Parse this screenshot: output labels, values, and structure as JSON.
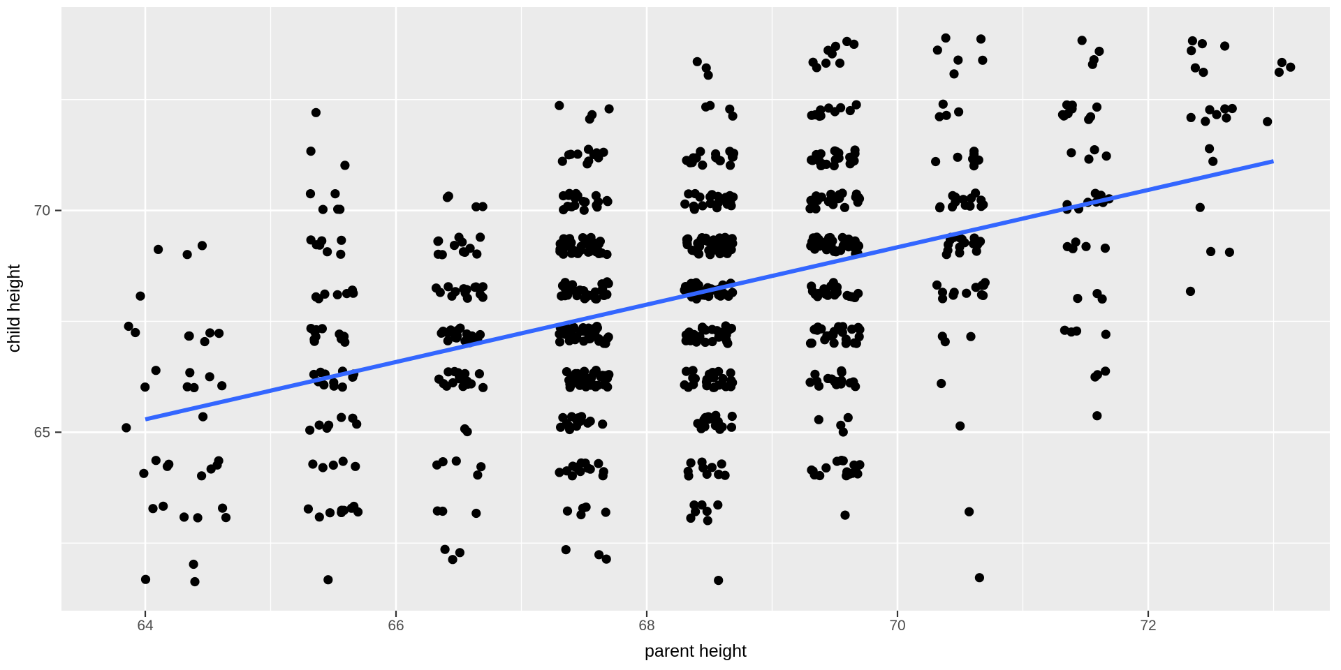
{
  "figure": {
    "background_color": "#FFFFFF",
    "kind": "ggplot-style jittered scatter plot with linear regression line"
  },
  "chart_data": {
    "type": "scatter",
    "title": "",
    "xlabel": "parent height",
    "ylabel": "child height",
    "x_ticks": [
      64,
      66,
      68,
      70,
      72
    ],
    "y_ticks": [
      65,
      70
    ],
    "x_minor_gridlines": [
      65,
      67,
      69,
      71,
      73
    ],
    "y_minor_gridlines": [
      62.5,
      67.5,
      72.5
    ],
    "xlim": [
      63.33,
      73.45
    ],
    "ylim": [
      60.98,
      74.59
    ],
    "grid": "on",
    "legend": "none",
    "panel_color": "#EBEBEB",
    "grid_color": "#FFFFFF",
    "point_color": "#000000",
    "tick_label_color": "#4D4D4D",
    "tick_mark_color": "#333333",
    "jitter": {
      "width": 0.2,
      "height": 0.2
    },
    "regression_line": {
      "color": "#3366FF",
      "x": [
        64,
        73
      ],
      "y": [
        65.29,
        71.11
      ]
    },
    "frequency_table": {
      "note": "Galton parent/child height data; counts of points per (parent height column, child height row) as read from the plotted clusters",
      "parent_values": [
        64,
        64.5,
        65.5,
        66.5,
        67.5,
        68.5,
        69.5,
        70.5,
        71.5,
        72.5,
        73
      ],
      "child_values": [
        61.7,
        62.2,
        63.2,
        64.2,
        65.2,
        66.2,
        67.2,
        68.2,
        69.2,
        70.2,
        71.2,
        72.2,
        73.2,
        73.7
      ],
      "counts": [
        [
          1,
          0,
          2,
          4,
          1,
          2,
          2,
          1,
          1,
          0,
          0,
          0,
          0,
          0
        ],
        [
          1,
          1,
          4,
          4,
          1,
          5,
          5,
          0,
          2,
          0,
          0,
          0,
          0,
          0
        ],
        [
          1,
          0,
          9,
          5,
          7,
          11,
          11,
          7,
          7,
          5,
          2,
          1,
          0,
          0
        ],
        [
          0,
          3,
          3,
          5,
          2,
          17,
          17,
          14,
          13,
          4,
          0,
          0,
          0,
          0
        ],
        [
          0,
          3,
          5,
          14,
          15,
          36,
          38,
          28,
          38,
          19,
          11,
          4,
          0,
          0
        ],
        [
          1,
          0,
          7,
          11,
          16,
          25,
          31,
          34,
          48,
          21,
          18,
          4,
          3,
          0
        ],
        [
          0,
          0,
          1,
          16,
          4,
          17,
          27,
          20,
          33,
          25,
          20,
          11,
          4,
          5
        ],
        [
          1,
          0,
          1,
          0,
          1,
          1,
          3,
          12,
          18,
          14,
          7,
          4,
          3,
          3
        ],
        [
          0,
          0,
          0,
          0,
          1,
          3,
          4,
          3,
          5,
          10,
          4,
          9,
          2,
          2
        ],
        [
          0,
          0,
          0,
          0,
          0,
          0,
          0,
          1,
          2,
          1,
          2,
          7,
          2,
          4
        ],
        [
          0,
          0,
          0,
          0,
          0,
          0,
          0,
          0,
          0,
          0,
          0,
          1,
          3,
          0
        ]
      ],
      "total_points": 928
    }
  }
}
